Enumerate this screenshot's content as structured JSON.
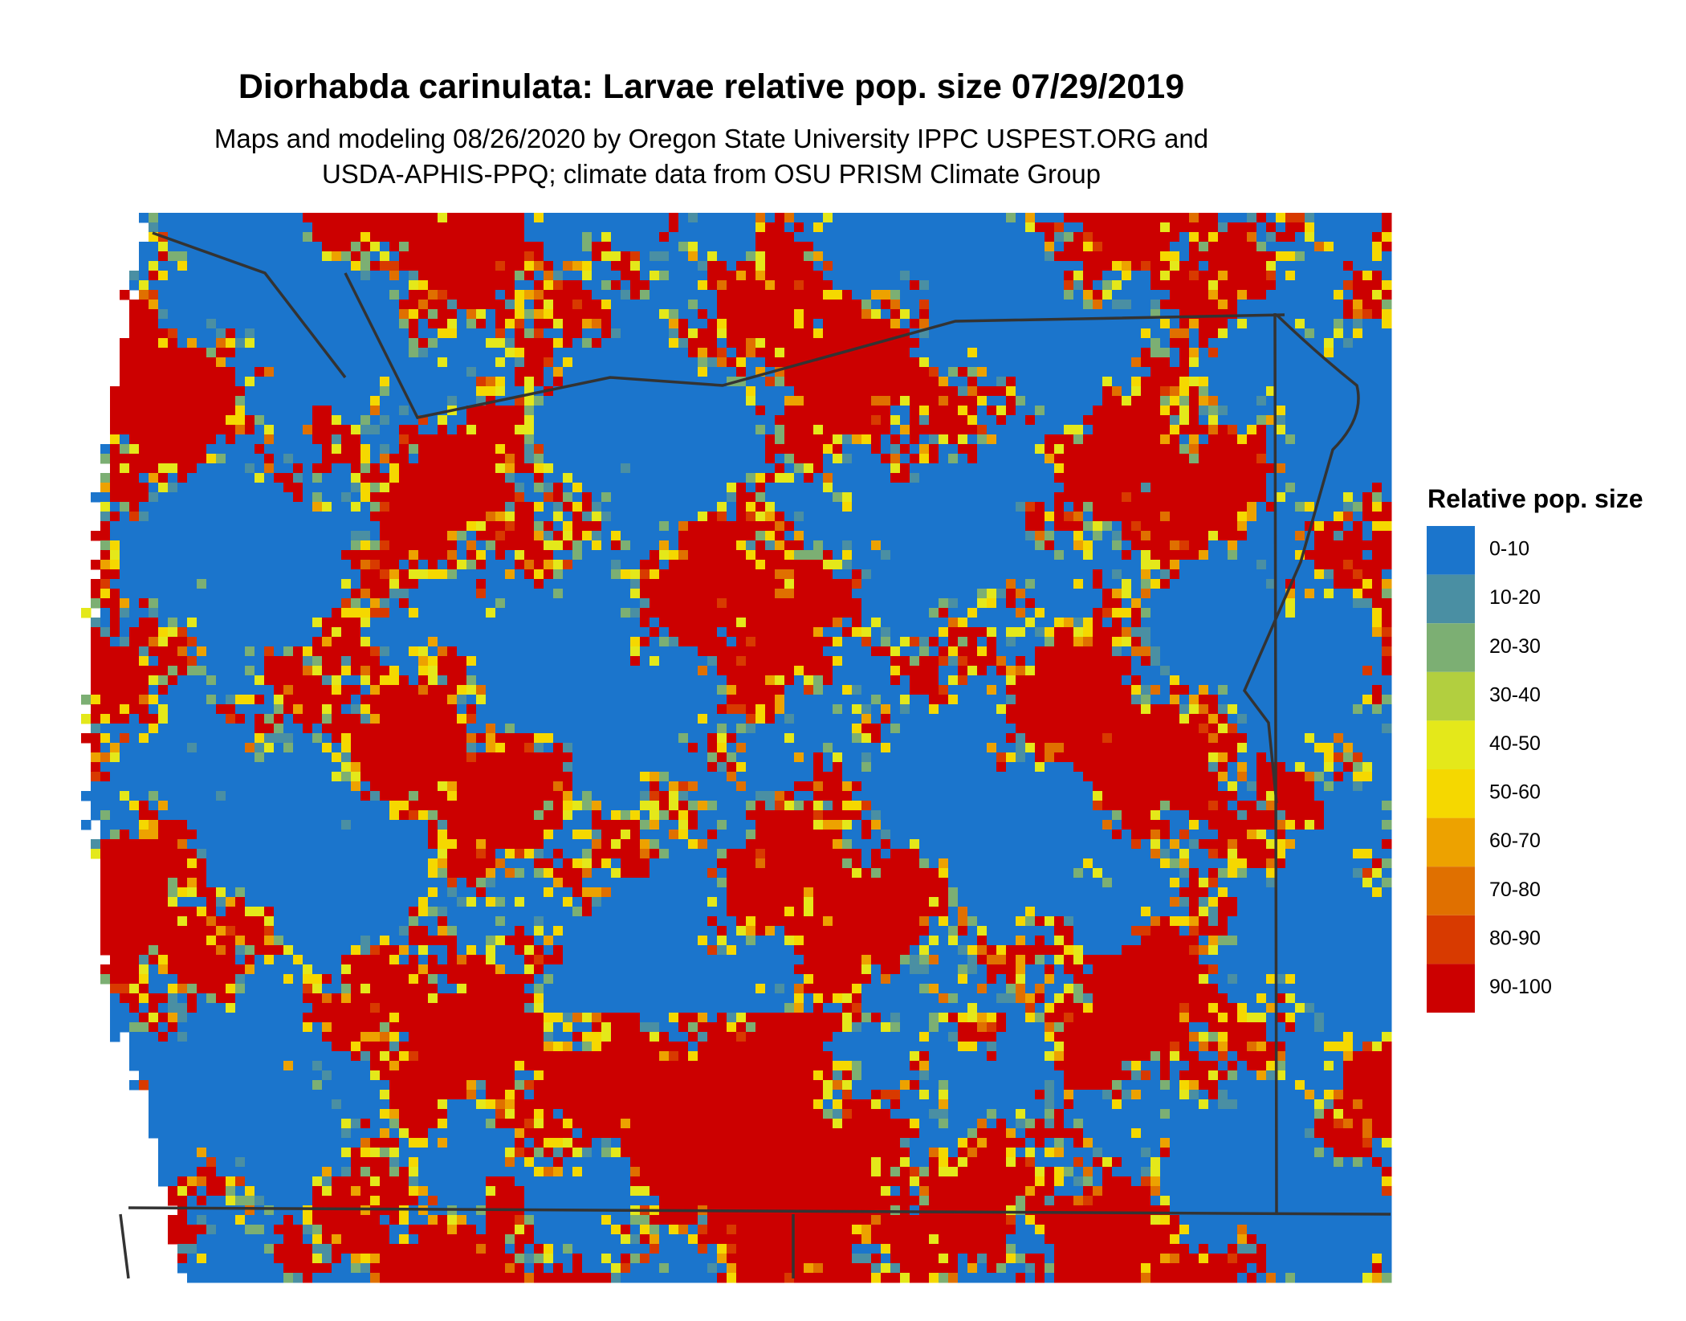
{
  "title": "Diorhabda carinulata: Larvae relative pop. size 07/29/2019",
  "subtitle": [
    "Maps and modeling 08/26/2020 by Oregon State University IPPC USPEST.ORG and",
    "USDA-APHIS-PPQ; climate data from OSU PRISM Climate Group"
  ],
  "legend": {
    "title": "Relative pop. size",
    "items": [
      {
        "label": "0-10",
        "color": "#1b75cc"
      },
      {
        "label": "10-20",
        "color": "#4a8fa3"
      },
      {
        "label": "20-30",
        "color": "#7caf73"
      },
      {
        "label": "30-40",
        "color": "#b2cf3f"
      },
      {
        "label": "40-50",
        "color": "#e4e81a"
      },
      {
        "label": "50-60",
        "color": "#f5d800"
      },
      {
        "label": "60-70",
        "color": "#eda200"
      },
      {
        "label": "70-80",
        "color": "#e07000"
      },
      {
        "label": "80-90",
        "color": "#d83a00"
      },
      {
        "label": "90-100",
        "color": "#cc0000"
      }
    ]
  }
}
